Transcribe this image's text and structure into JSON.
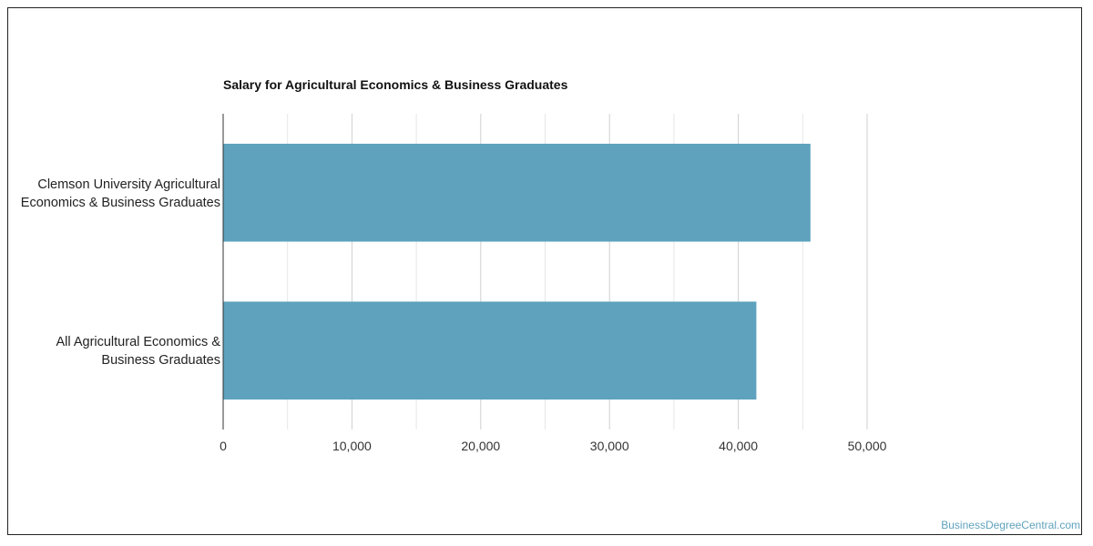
{
  "chart_data": {
    "type": "bar",
    "orientation": "horizontal",
    "title": "Salary for Agricultural Economics & Business Graduates",
    "categories": [
      "Clemson University Agricultural Economics & Business Graduates",
      "All Agricultural Economics & Business Graduates"
    ],
    "values": [
      45600,
      41400
    ],
    "xlim": [
      0,
      50000
    ],
    "x_ticks": [
      "0",
      "10,000",
      "20,000",
      "30,000",
      "40,000",
      "50,000"
    ],
    "grid": true,
    "bar_color": "#5ea2bd"
  },
  "labels": {
    "cat0_line1": "Clemson University Agricultural",
    "cat0_line2": "Economics & Business Graduates",
    "cat1_line1": "All Agricultural Economics &",
    "cat1_line2": "Business Graduates"
  },
  "watermark": "BusinessDegreeCentral.com"
}
